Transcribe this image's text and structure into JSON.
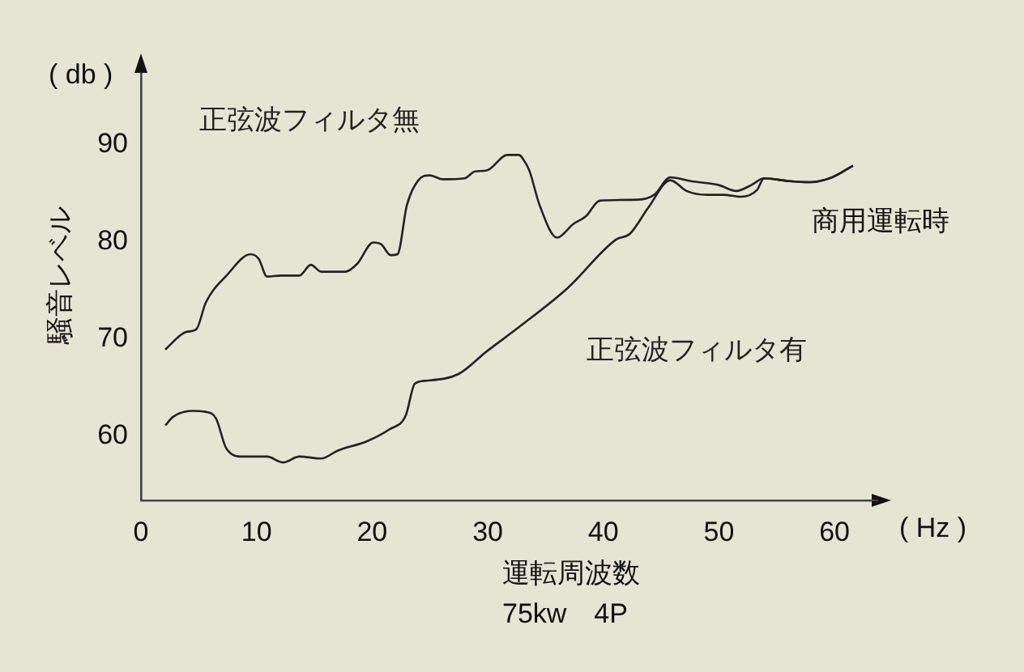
{
  "chart_data": {
    "type": "line",
    "xlabel": "運転周波数",
    "ylabel": "騒音レベル",
    "xlim": [
      0,
      63.5
    ],
    "ylim": [
      53.4,
      98
    ],
    "xticks": [
      0,
      10,
      20,
      30,
      40,
      50,
      60
    ],
    "yticks": [
      60,
      70,
      80,
      90
    ],
    "grid": false,
    "legend": false,
    "marker": "none",
    "line_style": "solid",
    "annotations": [
      "( db )",
      "( Hz )",
      "75kw　4P",
      {
        "text": "商用運転時",
        "x": 58,
        "y": 86.6
      }
    ],
    "series": [
      {
        "name": "正弦波フィルタ無",
        "color": "#222222",
        "x": [
          2.1,
          3.9,
          4.8,
          5.6,
          7.4,
          9.5,
          10.2,
          10.9,
          12.1,
          13.7,
          14.7,
          15.6,
          17.7,
          18.7,
          20.1,
          20.8,
          21.6,
          22.2,
          23,
          24,
          25,
          26.1,
          28,
          28.9,
          29.9,
          31.7,
          32.7,
          33.1,
          33.6,
          34.5,
          36,
          37.4,
          38.5,
          39.7,
          43,
          44.4,
          45.8,
          47.6,
          50,
          51.5,
          52.8,
          53.9,
          56.1,
          57.9,
          59.8,
          61.6
        ],
        "values": [
          68.9,
          70.7,
          71,
          73.7,
          76.5,
          78.7,
          78.2,
          76.4,
          76.5,
          76.5,
          77.6,
          76.9,
          76.9,
          77.7,
          79.9,
          79.7,
          78.6,
          78.7,
          83.7,
          86.3,
          86.8,
          86.4,
          86.5,
          87.2,
          87.3,
          88.9,
          88.9,
          88.4,
          87.3,
          83.7,
          80.4,
          81.8,
          82.6,
          84.2,
          84.3,
          84.8,
          86.6,
          86.2,
          85.8,
          85.2,
          85.8,
          86.5,
          86.2,
          86.1,
          86.6,
          87.8
        ]
      },
      {
        "name": "正弦波フィルタ有",
        "color": "#222222",
        "x": [
          2.1,
          2.8,
          4.4,
          5.6,
          6.5,
          7.4,
          8.8,
          10.9,
          12.3,
          13.7,
          15.6,
          17,
          19.6,
          21.5,
          22.9,
          23.7,
          24.7,
          27.5,
          29.9,
          32.7,
          36.9,
          41.1,
          42.3,
          43.9,
          45.8,
          47.2,
          49,
          50.4,
          51.9,
          53.3,
          53.9,
          56.1,
          57.9,
          59.8,
          61.6
        ],
        "values": [
          61.1,
          62,
          62.6,
          62.5,
          61.8,
          58.7,
          57.9,
          57.9,
          57.3,
          57.9,
          57.7,
          58.5,
          59.5,
          60.7,
          62.1,
          65.4,
          65.7,
          66.4,
          68.7,
          71.2,
          75.2,
          80.2,
          80.8,
          83.5,
          86.3,
          85.2,
          84.8,
          84.8,
          84.6,
          85.3,
          86.5,
          86.2,
          86.1,
          86.6,
          87.8
        ]
      }
    ]
  }
}
